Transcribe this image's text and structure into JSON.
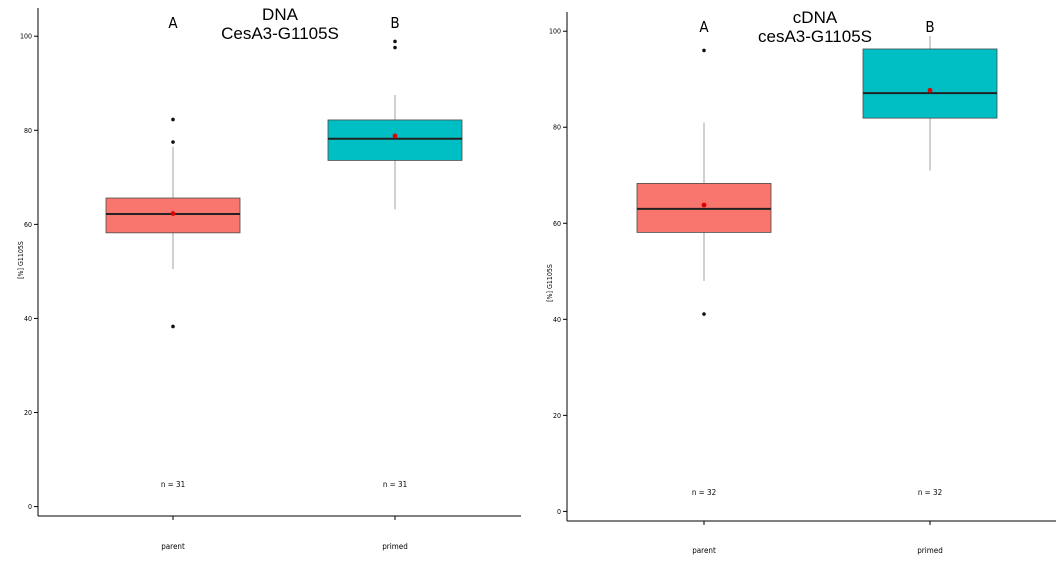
{
  "chart_data": [
    {
      "type": "boxplot",
      "title": "DNA\nCesA3-G1105S",
      "title_lines": [
        "DNA",
        "CesA3-G1105S"
      ],
      "xlabel": "",
      "ylabel": "[%] G1105S",
      "ylim": [
        -2,
        106
      ],
      "yticks": [
        "0",
        "20",
        "40",
        "60",
        "80",
        "100"
      ],
      "grid": false,
      "categories": [
        "parent",
        "primed"
      ],
      "colors": [
        "#F8766D",
        "#00BFC4"
      ],
      "boxes": [
        {
          "category": "parent",
          "whisker_low": 50.5,
          "q1": 58.2,
          "median": 62.2,
          "q3": 65.6,
          "whisker_high": 76.5,
          "mean": 62.3,
          "outliers": [
            82.3,
            77.5,
            38.3
          ],
          "group_letter": "A",
          "n_label": "n = 31"
        },
        {
          "category": "primed",
          "whisker_low": 63.2,
          "q1": 73.6,
          "median": 78.2,
          "q3": 82.2,
          "whisker_high": 87.5,
          "mean": 78.8,
          "outliers": [
            98.9,
            97.6
          ],
          "group_letter": "B",
          "n_label": "n = 31"
        }
      ]
    },
    {
      "type": "boxplot",
      "title": "cDNA\ncesA3-G1105S",
      "title_lines": [
        "cDNA",
        "cesA3-G1105S"
      ],
      "xlabel": "",
      "ylabel": "[%] G1105S",
      "ylim": [
        -2,
        104
      ],
      "yticks": [
        "0",
        "20",
        "40",
        "60",
        "80",
        "100"
      ],
      "grid": false,
      "categories": [
        "parent",
        "primed"
      ],
      "colors": [
        "#F8766D",
        "#00BFC4"
      ],
      "boxes": [
        {
          "category": "parent",
          "whisker_low": 48.0,
          "q1": 58.1,
          "median": 63.0,
          "q3": 68.3,
          "whisker_high": 81.0,
          "mean": 63.8,
          "outliers": [
            96.0,
            41.1
          ],
          "group_letter": "A",
          "n_label": "n = 32"
        },
        {
          "category": "primed",
          "whisker_low": 71.0,
          "q1": 81.9,
          "median": 87.1,
          "q3": 96.3,
          "whisker_high": 99.0,
          "mean": 87.7,
          "outliers": [],
          "group_letter": "B",
          "n_label": "n = 32"
        }
      ]
    }
  ]
}
